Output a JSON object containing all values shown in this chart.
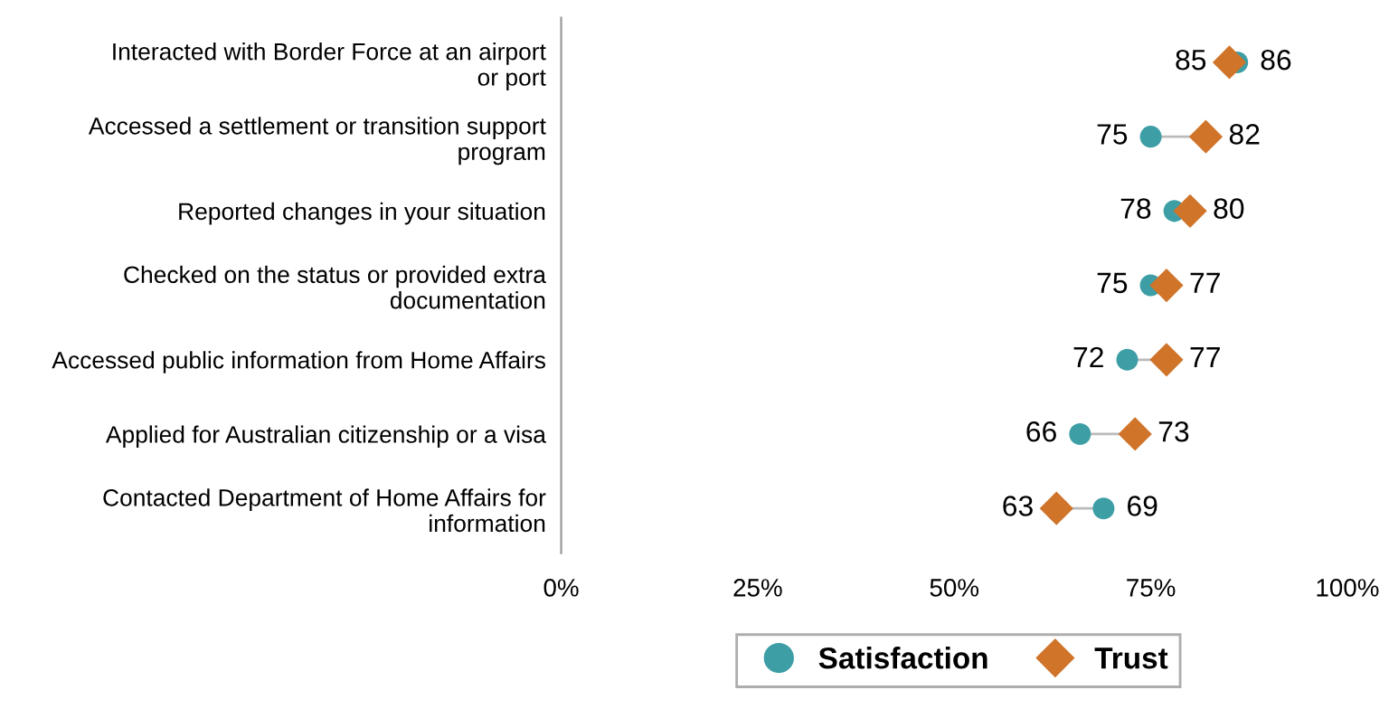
{
  "chart_data": {
    "type": "scatter",
    "orientation": "horizontal",
    "categories": [
      "Interacted with Border Force at an airport\nor port",
      "Accessed a settlement or transition support\nprogram",
      "Reported changes in your situation",
      "Checked on the status or provided extra\ndocumentation",
      "Accessed public information from Home Affairs",
      "Applied for Australian citizenship or a visa",
      "Contacted Department of Home Affairs for\ninformation"
    ],
    "series": [
      {
        "name": "Satisfaction",
        "color": "#3d9ea6",
        "marker": "circle",
        "values": [
          86,
          75,
          78,
          75,
          72,
          66,
          69
        ]
      },
      {
        "name": "Trust",
        "color": "#d0742a",
        "marker": "diamond",
        "values": [
          85,
          82,
          80,
          77,
          77,
          73,
          63
        ]
      }
    ],
    "xlim": [
      0,
      100
    ],
    "xticks": [
      {
        "value": 0,
        "label": "0%"
      },
      {
        "value": 25,
        "label": "25%"
      },
      {
        "value": 50,
        "label": "50%"
      },
      {
        "value": 75,
        "label": "75%"
      },
      {
        "value": 100,
        "label": "100%"
      }
    ],
    "data_labels": true,
    "legend": "bottom",
    "grid": false
  }
}
